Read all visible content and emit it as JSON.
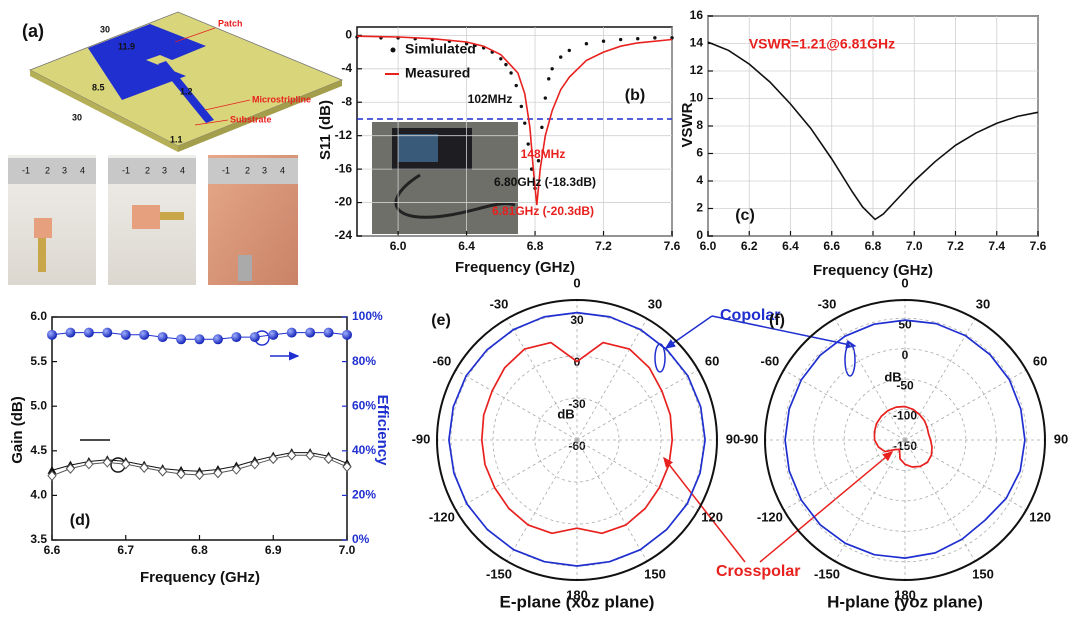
{
  "panel_a": {
    "label": "(a)",
    "dims": [
      "30",
      "11.9",
      "8.5",
      "1.2",
      "30",
      "1.1"
    ],
    "callouts": [
      "Patch",
      "Microstripline",
      "Substrate"
    ],
    "ruler": [
      "-1",
      "2",
      "3",
      "4"
    ]
  },
  "chart_data": [
    {
      "type": "line",
      "xlabel": "Frequency (GHz)",
      "ylabel": "S11 (dB)",
      "grid": true,
      "xlim": [
        5.76,
        7.6
      ],
      "ylim": [
        -24,
        1
      ],
      "xticks": [
        {
          "value": 6,
          "label": "6.0"
        },
        6.4,
        6.8,
        7.2,
        7.6
      ],
      "yticks": [
        0,
        -4,
        -8,
        -12,
        -16,
        -20,
        -24
      ],
      "reference_line": -10,
      "annotations": [
        "(b)",
        "102MHz",
        "148MHz",
        "6.80GHz (-18.3dB)",
        "6.81GHz (-20.3dB)"
      ],
      "series": [
        {
          "name": "Simlulated",
          "color": "#111111",
          "style": "dot",
          "x": [
            5.76,
            5.9,
            6.0,
            6.1,
            6.2,
            6.3,
            6.4,
            6.45,
            6.5,
            6.55,
            6.6,
            6.63,
            6.66,
            6.69,
            6.72,
            6.74,
            6.76,
            6.78,
            6.8,
            6.82,
            6.84,
            6.86,
            6.88,
            6.9,
            6.95,
            7.0,
            7.1,
            7.2,
            7.3,
            7.4,
            7.5,
            7.6
          ],
          "values": [
            -0.2,
            -0.3,
            -0.3,
            -0.4,
            -0.5,
            -0.7,
            -1.0,
            -1.2,
            -1.5,
            -2.0,
            -2.8,
            -3.5,
            -4.5,
            -6,
            -8.5,
            -10.5,
            -13,
            -16,
            -18.3,
            -15,
            -11,
            -7.5,
            -5.2,
            -4,
            -2.6,
            -1.8,
            -1.0,
            -0.7,
            -0.5,
            -0.4,
            -0.3,
            -0.3
          ]
        },
        {
          "name": "Measured",
          "color": "#e8201e",
          "style": "line",
          "x": [
            5.76,
            6.0,
            6.2,
            6.4,
            6.5,
            6.6,
            6.7,
            6.74,
            6.77,
            6.79,
            6.81,
            6.83,
            6.86,
            6.9,
            6.95,
            7.0,
            7.1,
            7.2,
            7.3,
            7.4,
            7.6
          ],
          "values": [
            -0.1,
            -0.2,
            -0.4,
            -0.8,
            -1.3,
            -2.3,
            -4.5,
            -7,
            -11,
            -16,
            -20.3,
            -16,
            -12,
            -9,
            -6.5,
            -5,
            -3,
            -2,
            -1.3,
            -0.9,
            -0.5
          ]
        }
      ]
    },
    {
      "type": "line",
      "xlabel": "Frequency (GHz)",
      "ylabel": "VSWR",
      "grid": true,
      "xlim": [
        6.0,
        7.6
      ],
      "ylim": [
        0,
        16
      ],
      "xticks": [
        {
          "value": 6,
          "label": "6.0"
        },
        6.2,
        6.4,
        6.6,
        6.8,
        {
          "value": 7,
          "label": "7.0"
        },
        7.2,
        7.4,
        7.6
      ],
      "yticks": [
        0,
        2,
        4,
        6,
        8,
        10,
        12,
        14,
        16
      ],
      "annotations": [
        "VSWR=1.21@6.81GHz",
        "(c)"
      ],
      "series": [
        {
          "color": "#111111",
          "style": "line",
          "x": [
            6.0,
            6.1,
            6.2,
            6.3,
            6.4,
            6.5,
            6.6,
            6.7,
            6.75,
            6.81,
            6.85,
            6.9,
            7.0,
            7.1,
            7.2,
            7.3,
            7.4,
            7.5,
            7.6
          ],
          "values": [
            14.1,
            13.5,
            12.5,
            11.2,
            9.6,
            7.8,
            5.6,
            3.2,
            2.1,
            1.21,
            1.6,
            2.4,
            4.0,
            5.4,
            6.6,
            7.5,
            8.2,
            8.7,
            9.0
          ]
        }
      ]
    },
    {
      "type": "line",
      "xlabel": "Frequency (GHz)",
      "ylabel": "Gain (dB)",
      "y2label": "Efficiency",
      "grid": false,
      "xlim": [
        6.6,
        7.0
      ],
      "ylim": [
        3.5,
        6.0
      ],
      "y2lim": [
        0,
        100
      ],
      "xticks": [
        6.6,
        6.7,
        6.8,
        6.9,
        {
          "value": 7,
          "label": "7.0"
        }
      ],
      "yticks": [
        3.5,
        {
          "value": 4,
          "label": "4.0"
        },
        4.5,
        {
          "value": 5,
          "label": "5.0"
        },
        5.5,
        {
          "value": 6,
          "label": "6.0"
        }
      ],
      "y2ticks": [
        {
          "value": 0,
          "label": "0%"
        },
        {
          "value": 20,
          "label": "20%"
        },
        {
          "value": 40,
          "label": "40%"
        },
        {
          "value": 60,
          "label": "60%"
        },
        {
          "value": 80,
          "label": "80%"
        },
        {
          "value": 100,
          "label": "100%"
        }
      ],
      "annotations": [
        "(d)"
      ],
      "series": [
        {
          "color": "#111111",
          "style": "triangle",
          "x": [
            6.6,
            6.625,
            6.65,
            6.675,
            6.7,
            6.725,
            6.75,
            6.775,
            6.8,
            6.825,
            6.85,
            6.875,
            6.9,
            6.925,
            6.95,
            6.975,
            7.0
          ],
          "values": [
            4.28,
            4.34,
            4.38,
            4.4,
            4.38,
            4.34,
            4.3,
            4.28,
            4.27,
            4.29,
            4.33,
            4.39,
            4.44,
            4.48,
            4.48,
            4.44,
            4.36
          ]
        },
        {
          "color": "#555555",
          "style": "diamond",
          "x": [
            6.6,
            6.625,
            6.65,
            6.675,
            6.7,
            6.725,
            6.75,
            6.775,
            6.8,
            6.825,
            6.85,
            6.875,
            6.9,
            6.925,
            6.95,
            6.975,
            7.0
          ],
          "values": [
            4.22,
            4.3,
            4.35,
            4.37,
            4.35,
            4.31,
            4.27,
            4.24,
            4.23,
            4.25,
            4.29,
            4.35,
            4.41,
            4.45,
            4.45,
            4.41,
            4.32
          ]
        },
        {
          "color": "#1f2fd0",
          "style": "ball",
          "axis": "y2",
          "x": [
            6.6,
            6.625,
            6.65,
            6.675,
            6.7,
            6.725,
            6.75,
            6.775,
            6.8,
            6.825,
            6.85,
            6.875,
            6.9,
            6.925,
            6.95,
            6.975,
            7.0
          ],
          "values": [
            92,
            93,
            93,
            93,
            92,
            92,
            91,
            90,
            90,
            90,
            91,
            91,
            92,
            93,
            93,
            93,
            92
          ]
        }
      ]
    },
    {
      "type": "polar",
      "title": "E-plane (xoz plane)",
      "rlabel": "dB",
      "rlim": [
        -60,
        40
      ],
      "rticks": [
        30,
        0,
        -30,
        -60
      ],
      "angle_ticks": [
        0,
        30,
        60,
        90,
        120,
        150,
        180,
        -150,
        -120,
        -90,
        -60,
        -30
      ],
      "annotations": [
        "(e)"
      ],
      "theta": [
        0,
        15,
        30,
        45,
        60,
        75,
        90,
        105,
        120,
        135,
        150,
        165,
        180,
        195,
        210,
        225,
        240,
        255,
        270,
        285,
        300,
        315,
        330,
        345
      ],
      "series": [
        {
          "name": "Copolar",
          "color": "#1f2fd0",
          "values": [
            31,
            31,
            31,
            31,
            31.5,
            31.5,
            31.5,
            31,
            31,
            30.5,
            30.5,
            30,
            30,
            30,
            30.5,
            30.5,
            31,
            31,
            31.5,
            31.5,
            31.5,
            31,
            31,
            31
          ]
        },
        {
          "name": "Crosspolar",
          "color": "#e8201e",
          "values": [
            -4,
            12,
            15,
            13,
            10,
            9,
            8,
            8,
            8,
            9,
            10,
            9,
            3,
            9,
            10,
            9,
            8,
            8,
            8,
            9,
            10,
            13,
            15,
            12
          ]
        }
      ]
    },
    {
      "type": "polar",
      "title": "H-plane (yoz plane)",
      "rlabel": "dB",
      "rlim": [
        -150,
        80
      ],
      "rticks": [
        50,
        0,
        -50,
        -100,
        -150
      ],
      "angle_ticks": [
        0,
        30,
        60,
        90,
        120,
        150,
        180,
        -150,
        -120,
        -90,
        -60,
        -30
      ],
      "annotations": [
        "(f)"
      ],
      "theta": [
        0,
        15,
        30,
        45,
        60,
        75,
        90,
        105,
        120,
        135,
        150,
        165,
        180,
        195,
        210,
        225,
        240,
        255,
        270,
        285,
        300,
        315,
        330,
        345
      ],
      "series": [
        {
          "color": "#1f2fd0",
          "values": [
            47,
            48,
            48,
            48,
            48,
            47,
            47,
            46,
            42,
            36,
            38,
            42,
            44,
            45,
            46,
            47,
            47,
            47,
            47,
            47,
            47,
            47,
            47,
            47
          ]
        },
        {
          "color": "#e8201e",
          "values": [
            -95,
            -98,
            -102,
            -105,
            -108,
            -110,
            -108,
            -104,
            -100,
            -98,
            -100,
            -104,
            -110,
            -118,
            -132,
            -128,
            -112,
            -105,
            -100,
            -98,
            -96,
            -95,
            -94,
            -94
          ]
        }
      ]
    }
  ]
}
